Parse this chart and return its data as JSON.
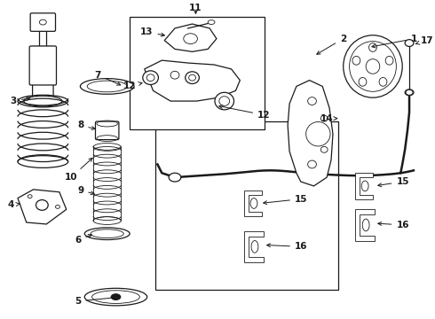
{
  "bg_color": "#ffffff",
  "line_color": "#1a1a1a",
  "fig_width": 4.9,
  "fig_height": 3.6,
  "dpi": 100,
  "label_fontsize": 7.5,
  "lw_main": 0.9,
  "lw_thin": 0.6
}
